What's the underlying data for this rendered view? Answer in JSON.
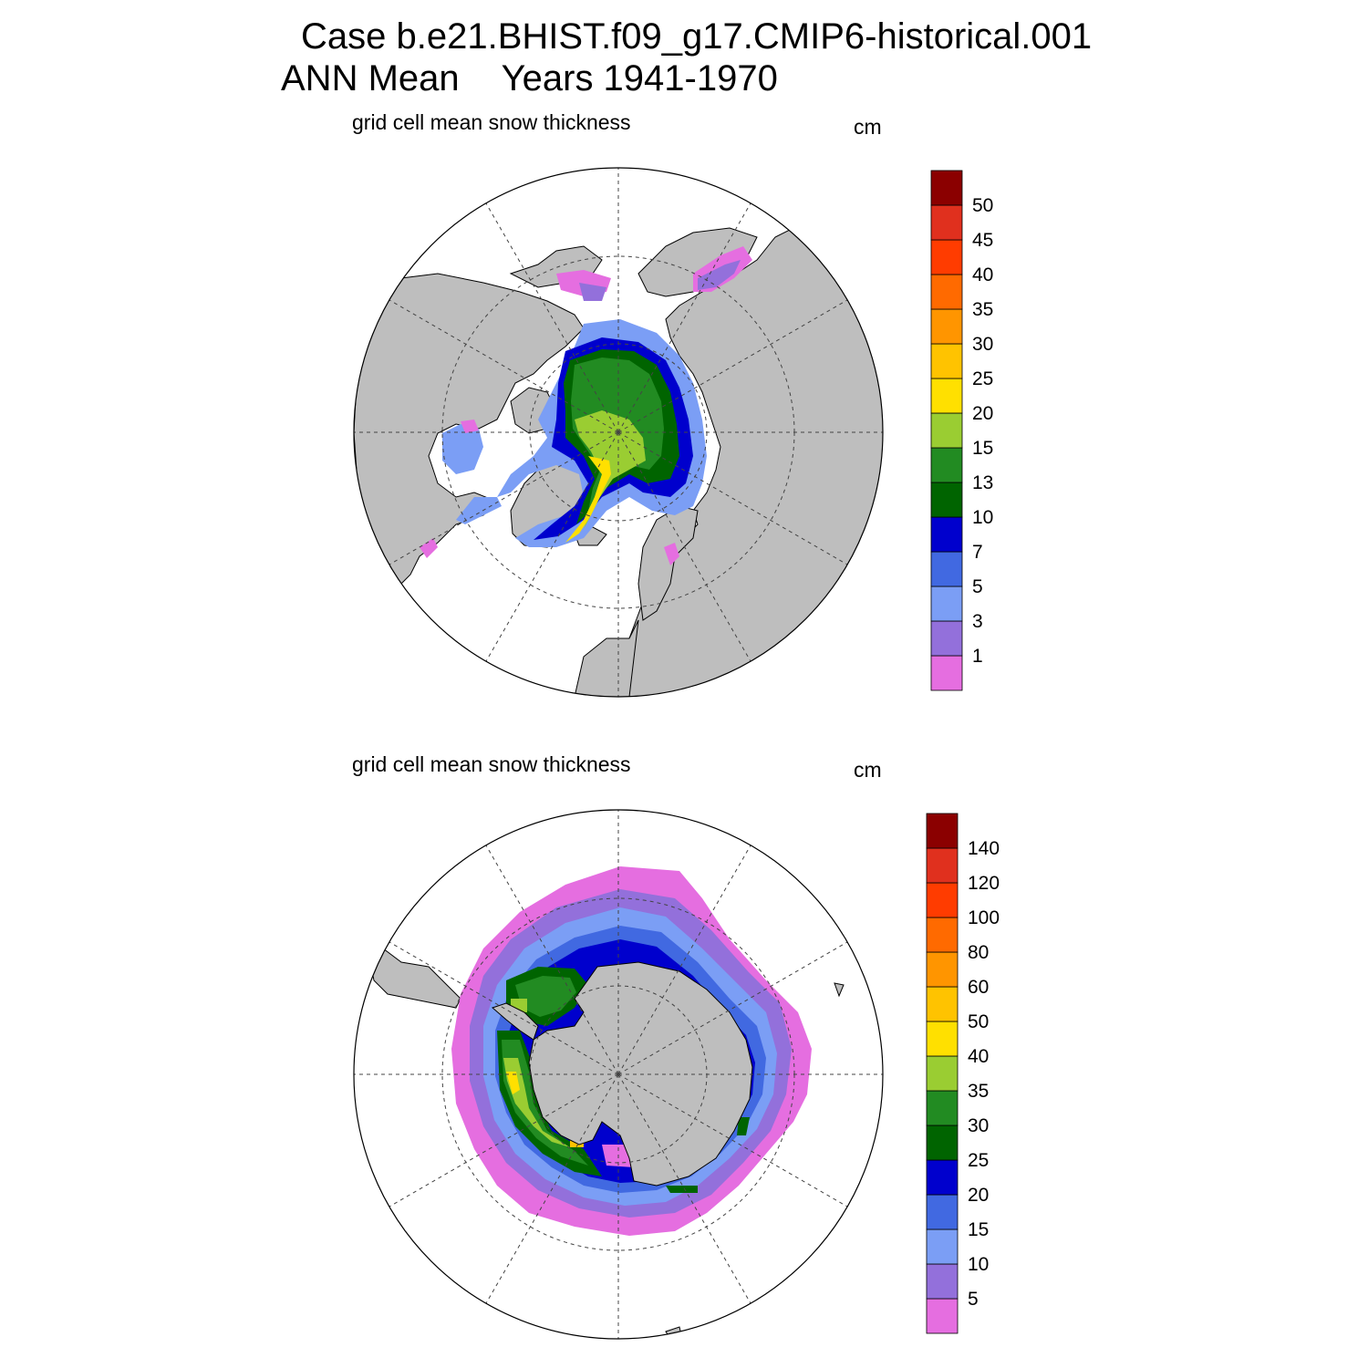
{
  "title": {
    "line1": "Case b.e21.BHIST.f09_g17.CMIP6-historical.001",
    "line2_a": "ANN Mean",
    "line2_b": "Years 1941-1970"
  },
  "panels": [
    {
      "label": "grid cell mean snow thickness",
      "units": "cm",
      "colorbar_labels": [
        "50",
        "45",
        "40",
        "35",
        "30",
        "25",
        "20",
        "15",
        "13",
        "10",
        "7",
        "5",
        "3",
        "1"
      ]
    },
    {
      "label": "grid cell mean snow thickness",
      "units": "cm",
      "colorbar_labels": [
        "140",
        "120",
        "100",
        "80",
        "60",
        "50",
        "40",
        "35",
        "30",
        "25",
        "20",
        "15",
        "10",
        "5"
      ]
    }
  ],
  "colors": {
    "land": "#bebebe",
    "ocean": "#ffffff",
    "scale": [
      "#e56ee0",
      "#9370db",
      "#7b9ef5",
      "#4169e1",
      "#0000cd",
      "#006400",
      "#228b22",
      "#9acd32",
      "#ffe000",
      "#ffc300",
      "#ff9500",
      "#ff6a00",
      "#ff3c00",
      "#e0301e",
      "#8b0000"
    ]
  }
}
